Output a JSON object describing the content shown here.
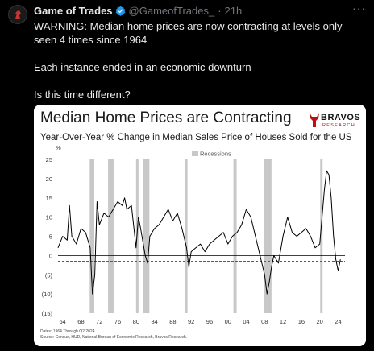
{
  "tweet": {
    "author_name": "Game of Trades",
    "author_handle": "@GameofTrades_",
    "separator": "·",
    "time": "21h",
    "more": "···",
    "paragraphs": [
      "WARNING: Median home prices are now contracting at levels only seen 4 times since 1964",
      "Each instance ended in an economic downturn",
      "Is this time different?"
    ]
  },
  "card": {
    "title": "Median Home Prices are Contracting",
    "logo_name": "BRAVOS",
    "logo_sub": "RESEARCH",
    "subtitle": "Year-Over-Year % Change in Median Sales Price of Houses Sold for the US",
    "footnote_dates": "Dates: 1964 Through Q2 2024.",
    "footnote_source": "Source: Census, HUD, National Bureau of Economic Research, Bravos Research."
  },
  "chart_data": {
    "type": "line",
    "ylabel": "%",
    "ylim": [
      -15,
      25
    ],
    "xlim": [
      1963,
      2025.5
    ],
    "yticks": [
      25,
      20,
      15,
      10,
      5,
      0,
      -5,
      -10,
      -15
    ],
    "ytick_labels": [
      "25",
      "20",
      "15",
      "10",
      "5",
      "0",
      "(5)",
      "(10)",
      "(15)"
    ],
    "xticks": [
      64,
      68,
      72,
      76,
      80,
      84,
      88,
      92,
      96,
      "00",
      "04",
      "08",
      12,
      16,
      20,
      24
    ],
    "legend": "Recessions",
    "legend_position": "top-center",
    "reference_line": {
      "y": -1.5,
      "style": "dashed",
      "color": "#d62728"
    },
    "zero_line": {
      "y": 0
    },
    "recessions": [
      [
        1969.9,
        1970.9
      ],
      [
        1973.9,
        1975.2
      ],
      [
        1980.0,
        1980.5
      ],
      [
        1981.5,
        1982.9
      ],
      [
        1990.6,
        1991.2
      ],
      [
        2001.2,
        2001.9
      ],
      [
        2007.9,
        2009.5
      ],
      [
        2020.1,
        2020.4
      ]
    ],
    "series": [
      {
        "color": "#000000",
        "x": [
          1963,
          1964,
          1965,
          1965.5,
          1966,
          1967,
          1968,
          1969,
          1970,
          1970.5,
          1971,
          1971.5,
          1972,
          1973,
          1974,
          1975,
          1976,
          1977,
          1977.5,
          1978,
          1979,
          1980,
          1980.5,
          1981,
          1982,
          1982.5,
          1983,
          1984,
          1985,
          1986,
          1987,
          1988,
          1989,
          1990,
          1991,
          1991.5,
          1992,
          1993,
          1994,
          1995,
          1996,
          1997,
          1998,
          1999,
          2000,
          2001,
          2002,
          2003,
          2004,
          2005,
          2006,
          2007,
          2008,
          2008.5,
          2009,
          2009.5,
          2010,
          2011,
          2012,
          2013,
          2014,
          2015,
          2016,
          2017,
          2018,
          2019,
          2020,
          2021,
          2021.5,
          2022,
          2022.5,
          2023,
          2023.5,
          2024,
          2024.5
        ],
        "y": [
          2,
          5,
          4,
          13,
          5,
          3,
          7,
          6,
          2,
          -10,
          -5,
          14,
          8,
          11,
          10,
          12,
          14,
          13,
          15,
          12,
          13,
          2,
          10,
          7,
          0,
          -2,
          5,
          7,
          8,
          10,
          12,
          9,
          11,
          7,
          2,
          -3,
          1,
          2,
          3,
          1,
          3,
          4,
          5,
          6,
          3,
          5,
          6,
          8,
          12,
          10,
          5,
          0,
          -5,
          -10,
          -7,
          -3,
          0,
          -2,
          5,
          10,
          6,
          5,
          6,
          7,
          5,
          2,
          3,
          17,
          22,
          21,
          15,
          5,
          -1,
          -4,
          -1
        ]
      }
    ]
  }
}
